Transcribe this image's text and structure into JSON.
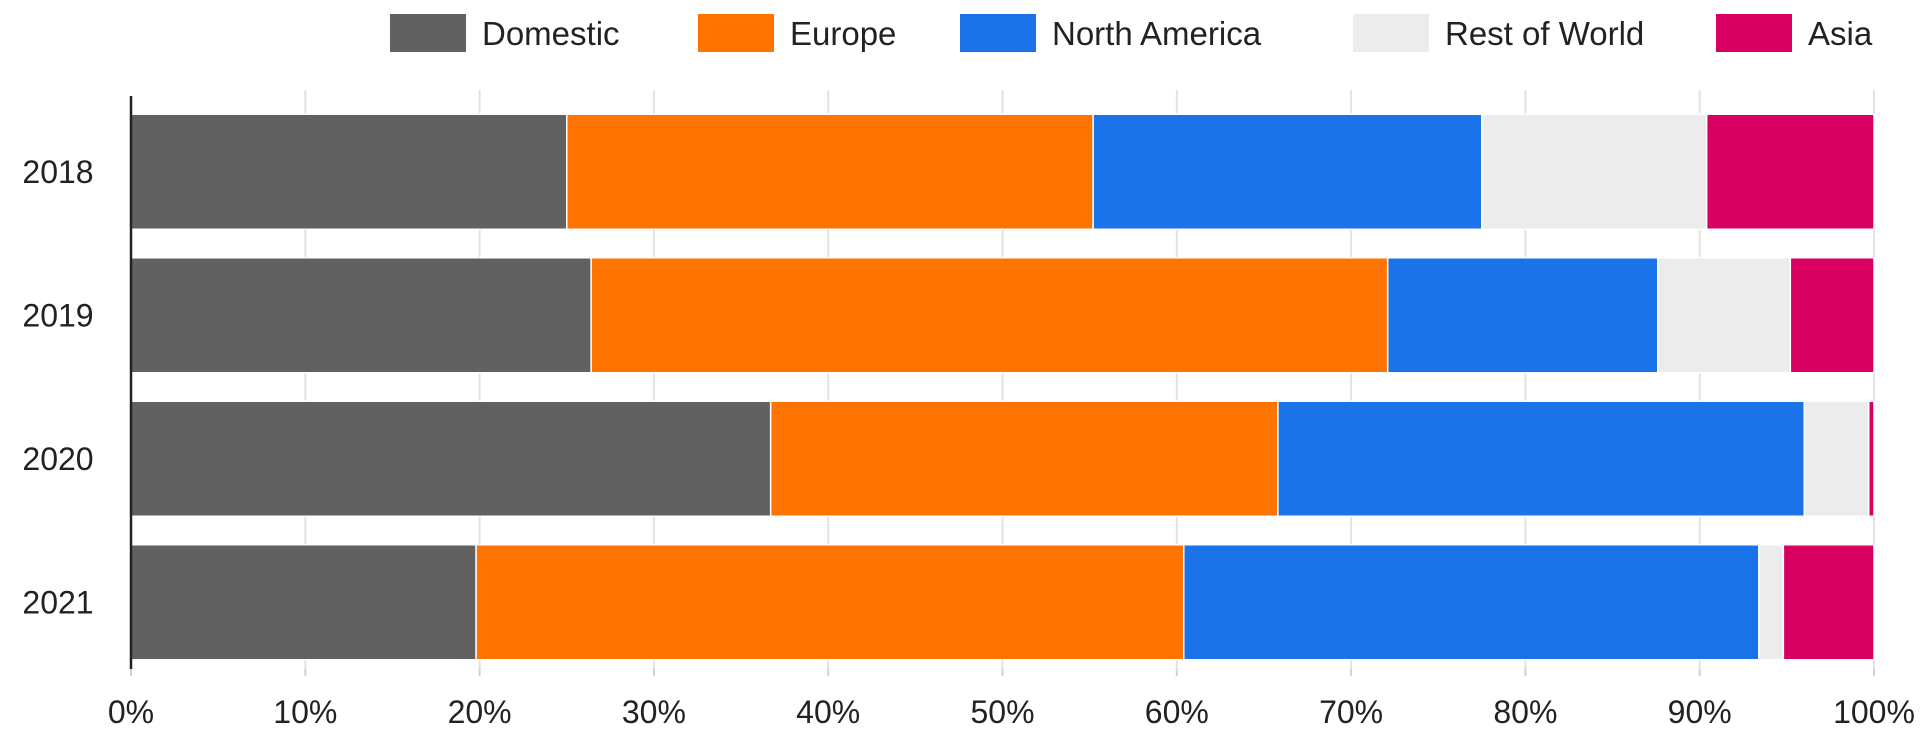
{
  "chart_data": {
    "type": "bar",
    "orientation": "horizontal",
    "stacked": true,
    "normalized": true,
    "categories": [
      "2018",
      "2019",
      "2020",
      "2021"
    ],
    "series": [
      {
        "name": "Domestic",
        "color": "#616161",
        "values": [
          25.0,
          26.4,
          36.7,
          19.8
        ]
      },
      {
        "name": "Europe",
        "color": "#ff7300",
        "values": [
          30.2,
          45.7,
          29.1,
          40.6
        ]
      },
      {
        "name": "North America",
        "color": "#1a73e8",
        "values": [
          22.3,
          15.5,
          30.2,
          33.0
        ]
      },
      {
        "name": "Rest of World",
        "color": "#ececec",
        "values": [
          12.9,
          7.6,
          3.7,
          1.4
        ]
      },
      {
        "name": "Asia",
        "color": "#d70060",
        "values": [
          9.6,
          4.8,
          0.3,
          5.2
        ]
      }
    ],
    "x_ticks": [
      "0%",
      "10%",
      "20%",
      "30%",
      "40%",
      "50%",
      "60%",
      "70%",
      "80%",
      "90%",
      "100%"
    ],
    "xlim": [
      0,
      100
    ],
    "legend_position": "top-right",
    "grid": "vertical"
  }
}
